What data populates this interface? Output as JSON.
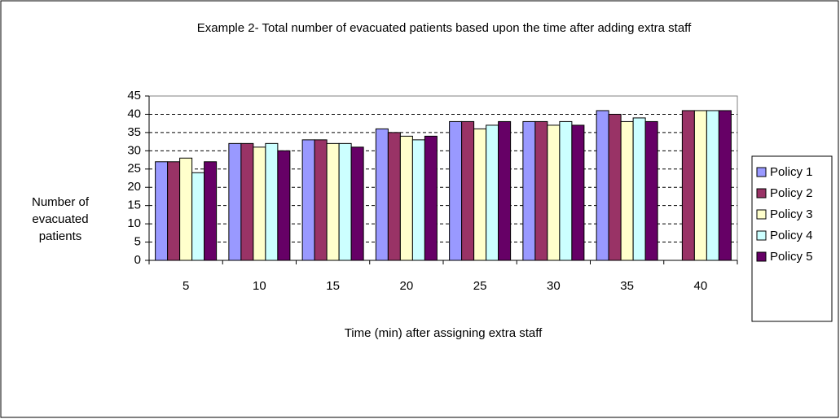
{
  "chart_data": {
    "type": "bar",
    "title": "Example 2- Total number of evacuated patients based upon the time after adding extra staff",
    "xlabel": "Time (min) after assigning extra staff",
    "ylabel": "Number of evacuated patients",
    "categories": [
      "5",
      "10",
      "15",
      "20",
      "25",
      "30",
      "35",
      "40"
    ],
    "series": [
      {
        "name": "Policy 1",
        "color": "#9999ff",
        "values": [
          27,
          32,
          33,
          36,
          38,
          38,
          41,
          null
        ]
      },
      {
        "name": "Policy 2",
        "color": "#993366",
        "values": [
          27,
          32,
          33,
          35,
          38,
          38,
          40,
          41
        ]
      },
      {
        "name": "Policy 3",
        "color": "#ffffcc",
        "values": [
          28,
          31,
          32,
          34,
          36,
          37,
          38,
          41
        ]
      },
      {
        "name": "Policy 4",
        "color": "#ccffff",
        "values": [
          24,
          32,
          32,
          33,
          37,
          38,
          39,
          41
        ]
      },
      {
        "name": "Policy 5",
        "color": "#660066",
        "values": [
          27,
          30,
          31,
          34,
          38,
          37,
          38,
          41
        ]
      }
    ],
    "ylim": [
      0,
      45
    ],
    "yticks": [
      0,
      5,
      10,
      15,
      20,
      25,
      30,
      35,
      40,
      45
    ],
    "grid": true,
    "legend": "right"
  }
}
